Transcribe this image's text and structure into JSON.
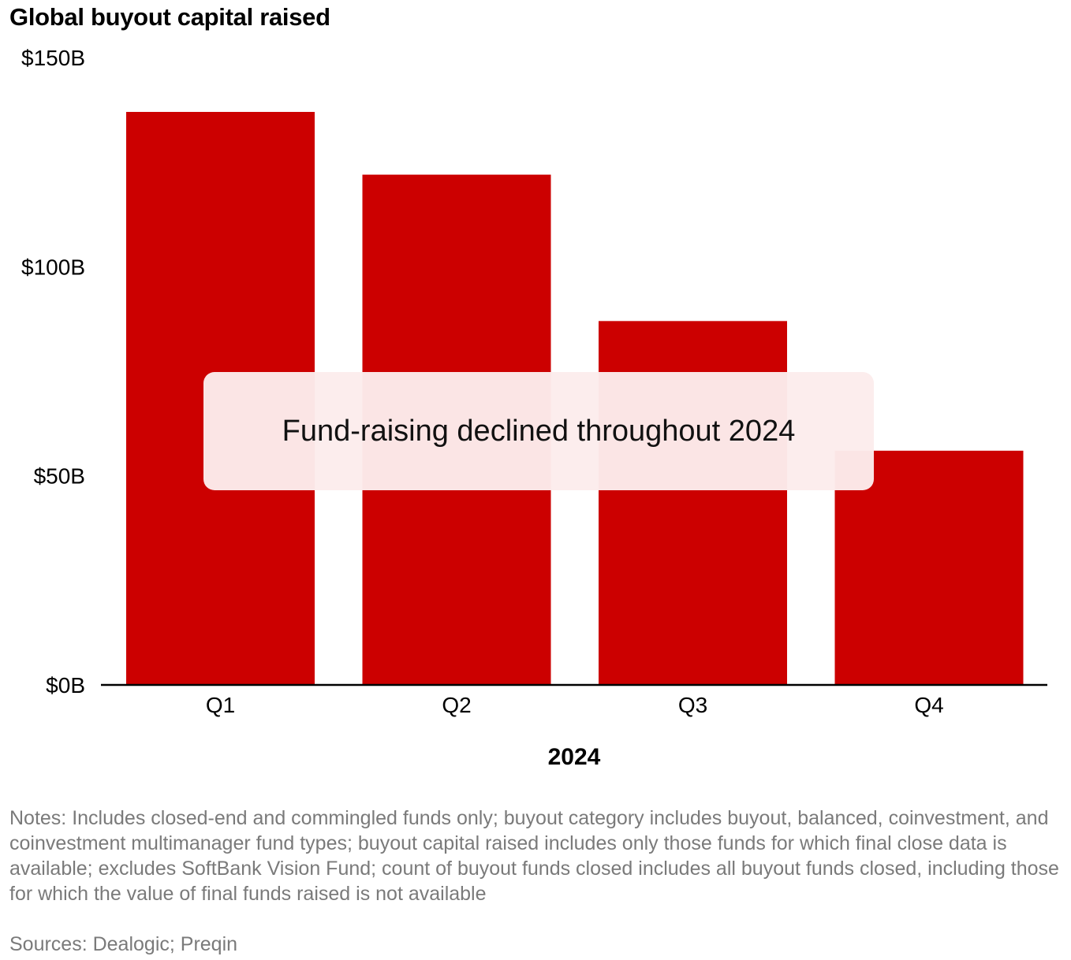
{
  "chart_data": {
    "type": "bar",
    "title": "Global buyout capital raised",
    "xlabel": "2024",
    "ylabel": "",
    "categories": [
      "Q1",
      "Q2",
      "Q3",
      "Q4"
    ],
    "values": [
      137,
      122,
      87,
      56
    ],
    "ylim": [
      0,
      150
    ],
    "yticks": [
      0,
      50,
      100,
      150
    ],
    "ytick_labels": [
      "$0B",
      "$50B",
      "$100B",
      "$150B"
    ],
    "bar_color": "#cc0000",
    "grid": false,
    "annotation": "Fund-raising declined throughout 2024"
  },
  "notes": "Notes: Includes closed-end and commingled funds only; buyout category includes buyout, balanced, coinvestment, and coinvestment multimanager fund types; buyout capital raised includes only those funds for which final close data is available; excludes SoftBank Vision Fund; count of buyout funds closed includes all buyout funds closed, including those for which the value of final funds raised is not available",
  "sources": "Sources: Dealogic; Preqin"
}
